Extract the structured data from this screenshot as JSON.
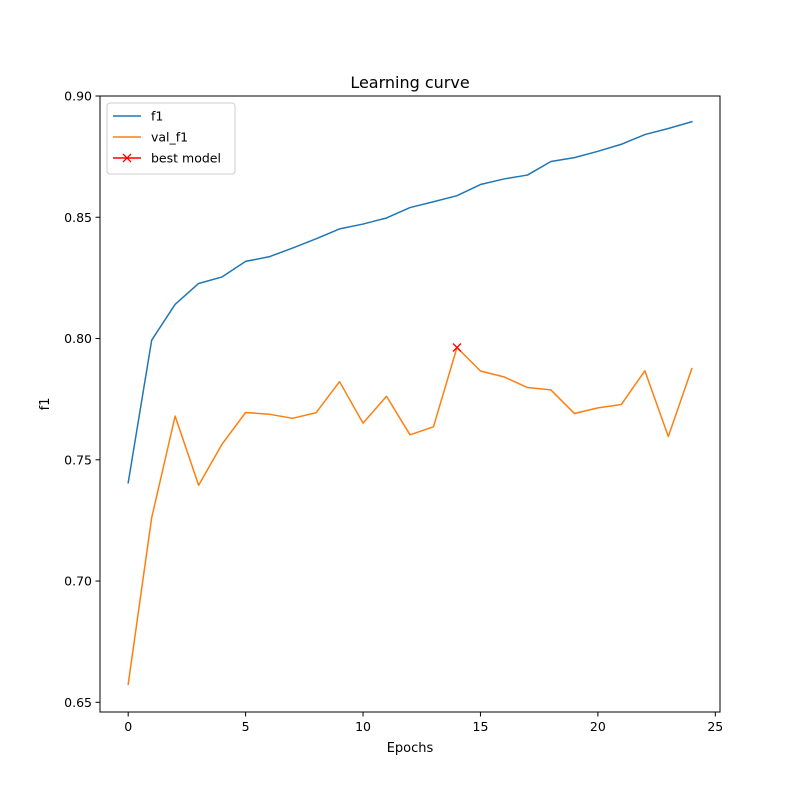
{
  "chart_data": {
    "type": "line",
    "title": "Learning curve",
    "xlabel": "Epochs",
    "ylabel": "f1",
    "xlim": [
      -1.2,
      25.2
    ],
    "ylim": [
      0.646,
      0.9
    ],
    "xticks": [
      0,
      5,
      10,
      15,
      20,
      25
    ],
    "yticks": [
      0.65,
      0.7,
      0.75,
      0.8,
      0.85,
      0.9
    ],
    "xtick_labels": [
      "0",
      "5",
      "10",
      "15",
      "20",
      "25"
    ],
    "ytick_labels": [
      "0.65",
      "0.70",
      "0.75",
      "0.80",
      "0.85",
      "0.90"
    ],
    "grid": false,
    "legend_position": "upper-left",
    "x": [
      0,
      1,
      2,
      3,
      4,
      5,
      6,
      7,
      8,
      9,
      10,
      11,
      12,
      13,
      14,
      15,
      16,
      17,
      18,
      19,
      20,
      21,
      22,
      23,
      24
    ],
    "series": [
      {
        "name": "f1",
        "color": "#1f77b4",
        "marker": "none",
        "values": [
          0.7405,
          0.7993,
          0.8141,
          0.8227,
          0.8254,
          0.8318,
          0.8337,
          0.8373,
          0.8411,
          0.8452,
          0.8472,
          0.8497,
          0.854,
          0.8564,
          0.8589,
          0.8635,
          0.8658,
          0.8674,
          0.873,
          0.8746,
          0.8772,
          0.8801,
          0.8841,
          0.8866,
          0.8894
        ]
      },
      {
        "name": "val_f1",
        "color": "#ff7f0e",
        "marker": "none",
        "values": [
          0.6574,
          0.7261,
          0.768,
          0.7395,
          0.7565,
          0.7695,
          0.7688,
          0.7671,
          0.7694,
          0.7822,
          0.7651,
          0.7762,
          0.7603,
          0.7636,
          0.7963,
          0.7866,
          0.7842,
          0.7798,
          0.7788,
          0.7691,
          0.7714,
          0.7728,
          0.7867,
          0.7596,
          0.7876
        ]
      },
      {
        "name": "best model",
        "color": "#ff0000",
        "marker": "x",
        "points": [
          {
            "x": 14,
            "y": 0.7963
          }
        ]
      }
    ]
  }
}
